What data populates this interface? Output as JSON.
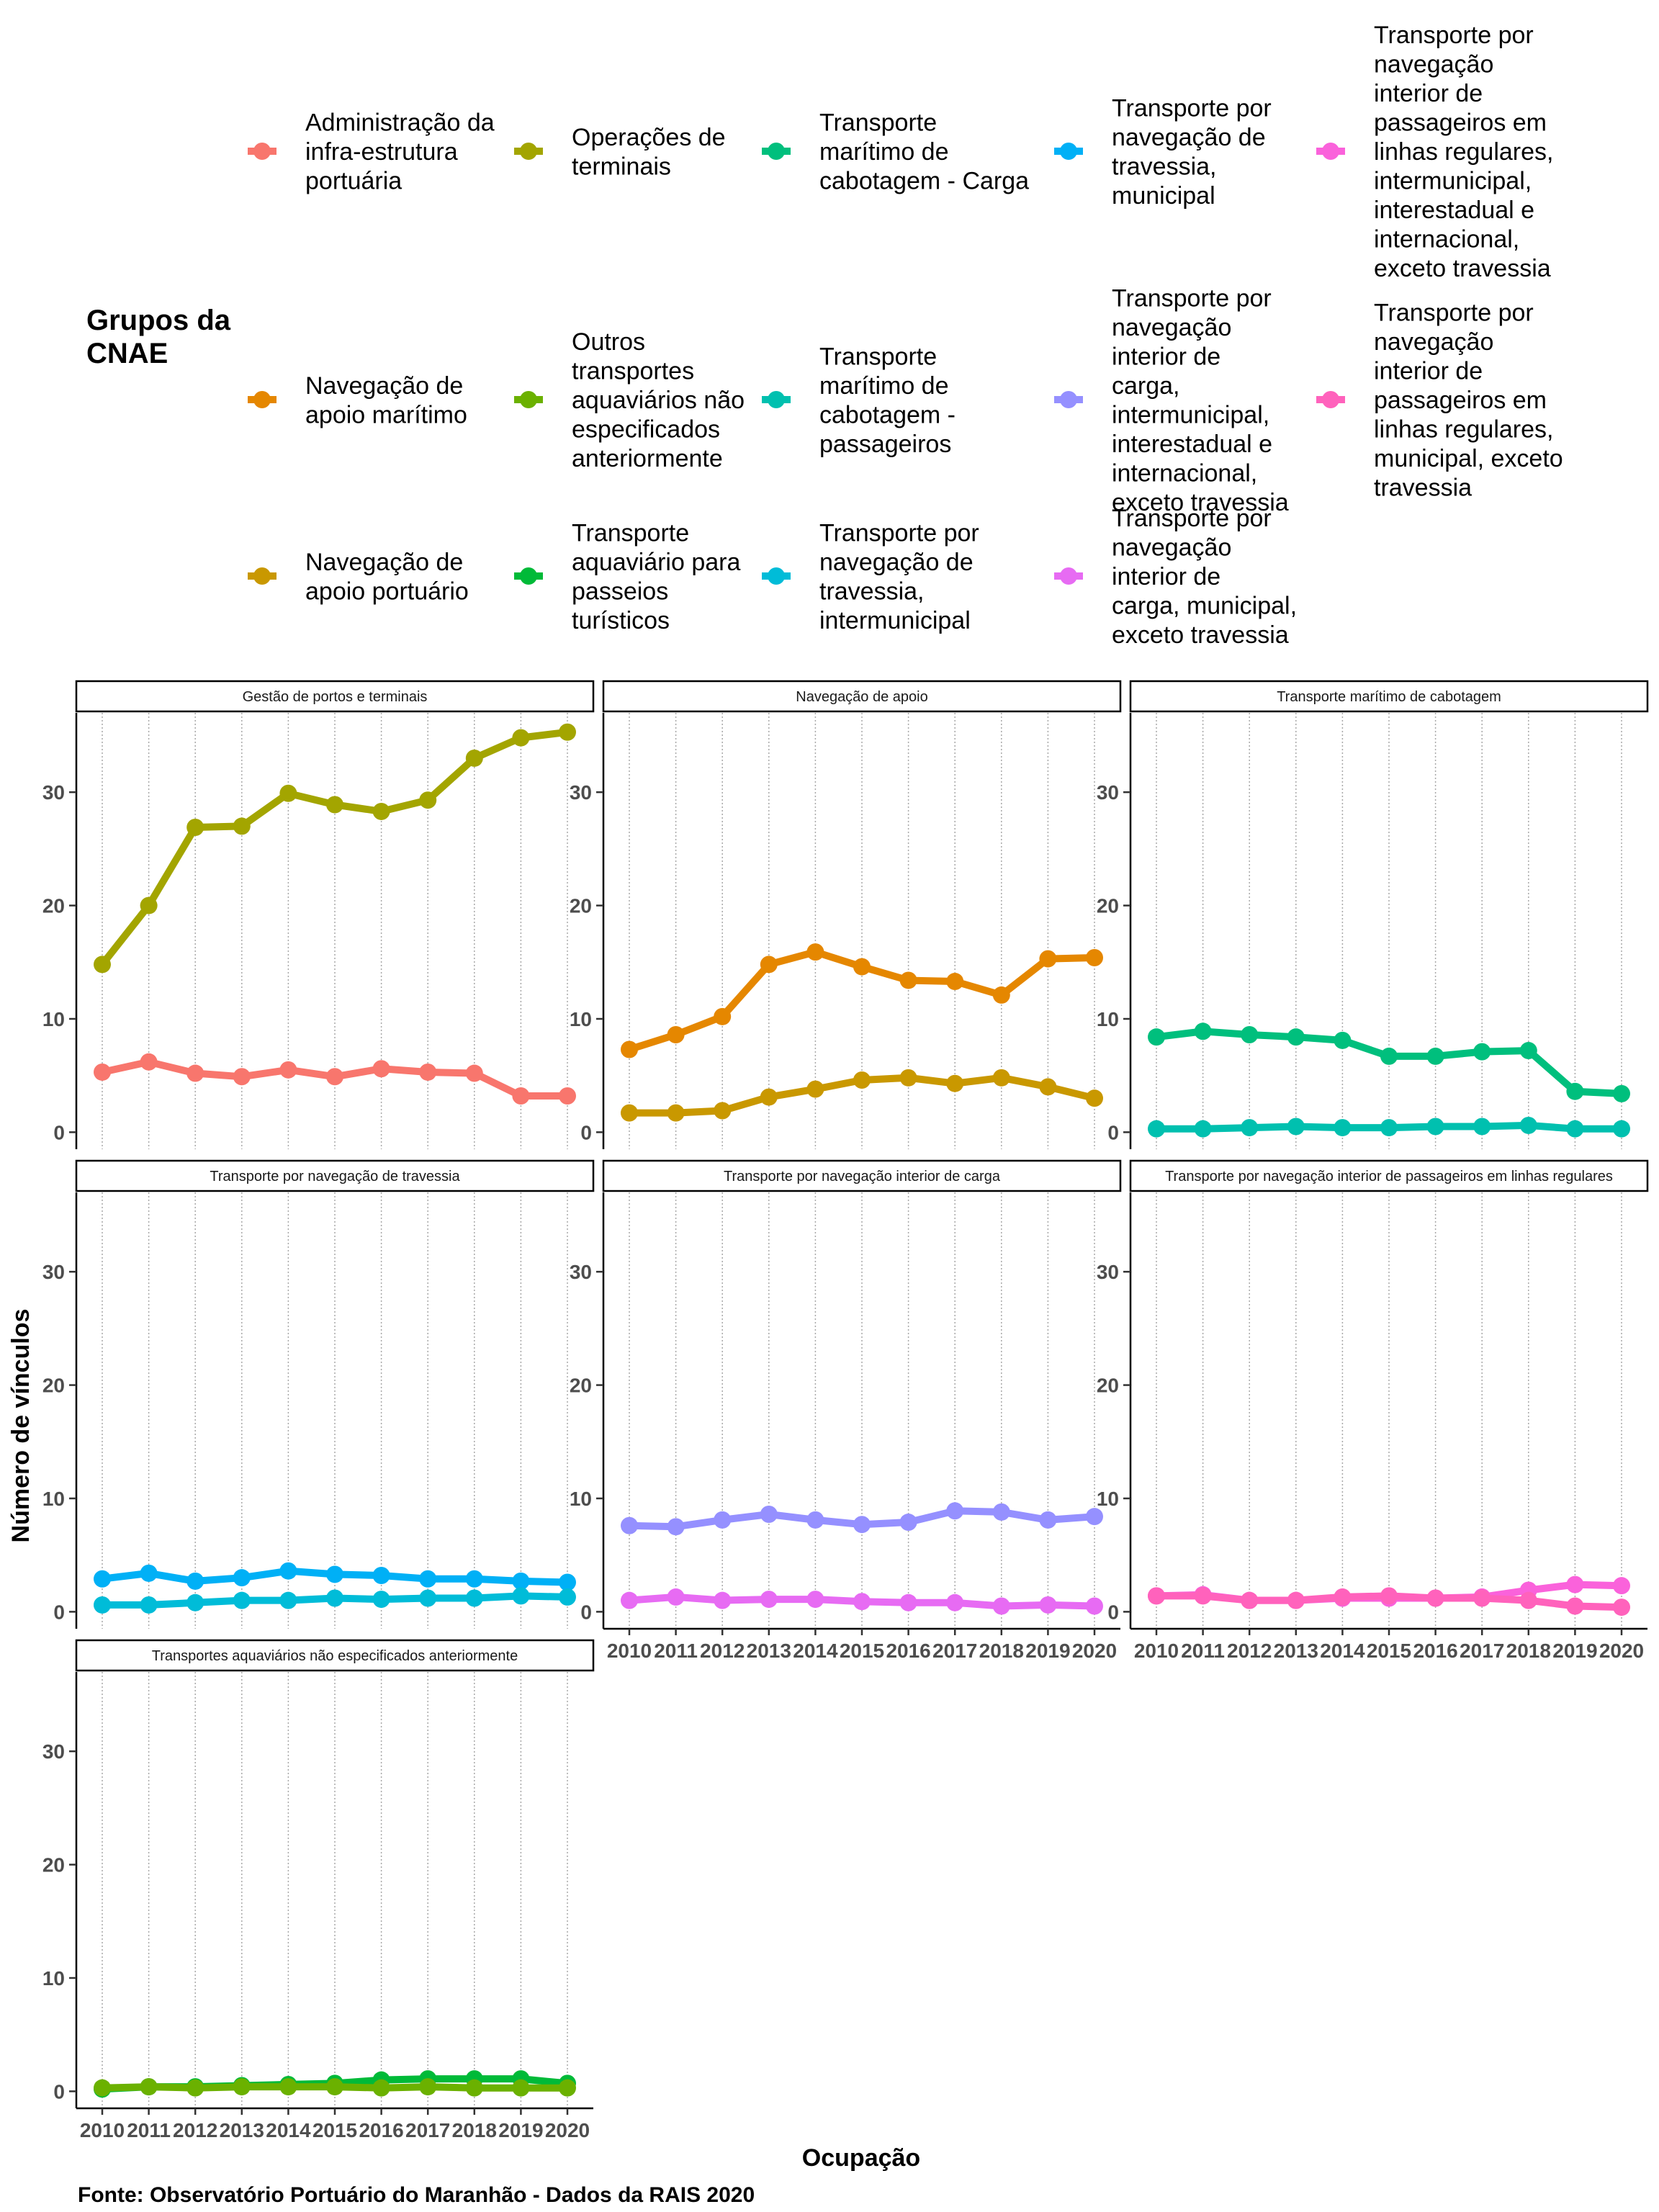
{
  "chart_data": {
    "type": "line",
    "legend": {
      "title": "Grupos da\nCNAE",
      "placement": "top"
    },
    "xlabel": "Ocupação",
    "ylabel": "Número de vínculos",
    "caption": "Fonte: Observatório Portuário do Maranhão - Dados da RAIS 2020",
    "ylim": [
      -1.5,
      37
    ],
    "yticks": [
      0,
      10,
      20,
      30
    ],
    "x": [
      "2010",
      "2011",
      "2012",
      "2013",
      "2014",
      "2015",
      "2016",
      "2017",
      "2018",
      "2019",
      "2020"
    ],
    "groups": [
      {
        "name": "Administração da\ninfra-estrutura\nportuária",
        "color": "#F8766D"
      },
      {
        "name": "Navegação de\napoio marítimo",
        "color": "#E58700"
      },
      {
        "name": "Navegação de\napoio portuário",
        "color": "#C99800"
      },
      {
        "name": "Operações de\nterminais",
        "color": "#A3A500"
      },
      {
        "name": "Outros\ntransportes\naquaviários não\nespecificados\nanteriormente",
        "color": "#6BB100"
      },
      {
        "name": "Transporte\naquaviário para\npasseios\nturísticos",
        "color": "#00BA38"
      },
      {
        "name": "Transporte\nmarítimo de\ncabotagem - Carga",
        "color": "#00BF7D"
      },
      {
        "name": "Transporte\nmarítimo de\ncabotagem -\npassageiros",
        "color": "#00C0AF"
      },
      {
        "name": "Transporte por\nnavegação de\ntravessia,\nintermunicipal",
        "color": "#00BCD8"
      },
      {
        "name": "Transporte por\nnavegação de\ntravessia,\nmunicipal",
        "color": "#00B0F6"
      },
      {
        "name": "Transporte por\nnavegação\ninterior de\ncarga,\nintermunicipal,\ninterestadual e\ninternacional,\nexceto travessia",
        "color": "#9590FF"
      },
      {
        "name": "Transporte por\nnavegação\ninterior de\ncarga, municipal,\nexceto travessia",
        "color": "#E76BF3"
      },
      {
        "name": "Transporte por\nnavegação\ninterior de\npassageiros em\nlinhas regulares,\nintermunicipal,\ninterestadual e\ninternacional,\nexceto travessia",
        "color": "#FA62DB"
      },
      {
        "name": "Transporte por\nnavegação\ninterior de\npassageiros em\nlinhas regulares,\nmunicipal, exceto\ntravessia",
        "color": "#FF62BC"
      }
    ],
    "panels": [
      {
        "title": "Gestão de portos e terminais",
        "series": [
          {
            "group": 3,
            "values": [
              14.8,
              20.0,
              26.9,
              27.0,
              29.9,
              28.9,
              28.3,
              29.3,
              33.0,
              34.8,
              35.3
            ]
          },
          {
            "group": 0,
            "values": [
              5.3,
              6.2,
              5.2,
              4.9,
              5.5,
              4.9,
              5.6,
              5.3,
              5.2,
              3.2,
              3.2
            ]
          }
        ]
      },
      {
        "title": "Navegação de apoio",
        "series": [
          {
            "group": 1,
            "values": [
              7.3,
              8.6,
              10.2,
              14.8,
              15.9,
              14.6,
              13.4,
              13.3,
              12.1,
              15.3,
              15.4
            ]
          },
          {
            "group": 2,
            "values": [
              1.7,
              1.7,
              1.9,
              3.1,
              3.8,
              4.6,
              4.8,
              4.3,
              4.8,
              4.0,
              3.0
            ]
          }
        ]
      },
      {
        "title": "Transporte marítimo de cabotagem",
        "series": [
          {
            "group": 6,
            "values": [
              8.4,
              8.9,
              8.6,
              8.4,
              8.1,
              6.7,
              6.7,
              7.1,
              7.2,
              3.6,
              3.4
            ]
          },
          {
            "group": 7,
            "values": [
              0.3,
              0.3,
              0.4,
              0.5,
              0.4,
              0.4,
              0.5,
              0.5,
              0.6,
              0.3,
              0.3
            ]
          }
        ]
      },
      {
        "title": "Transporte por navegação de travessia",
        "series": [
          {
            "group": 9,
            "values": [
              2.9,
              3.4,
              2.7,
              3.0,
              3.6,
              3.3,
              3.2,
              2.9,
              2.9,
              2.7,
              2.6
            ]
          },
          {
            "group": 8,
            "values": [
              0.6,
              0.6,
              0.8,
              1.0,
              1.0,
              1.2,
              1.1,
              1.2,
              1.2,
              1.4,
              1.3
            ]
          }
        ]
      },
      {
        "title": "Transporte por navegação interior de carga",
        "series": [
          {
            "group": 10,
            "values": [
              7.6,
              7.5,
              8.1,
              8.6,
              8.1,
              7.7,
              7.9,
              8.9,
              8.8,
              8.1,
              8.4
            ]
          },
          {
            "group": 11,
            "values": [
              1.0,
              1.3,
              1.0,
              1.1,
              1.1,
              0.9,
              0.8,
              0.8,
              0.5,
              0.6,
              0.5
            ]
          }
        ]
      },
      {
        "title": "Transporte por navegação interior de passageiros em linhas regulares",
        "series": [
          {
            "group": 12,
            "values": [
              1.4,
              1.5,
              1.0,
              1.0,
              1.2,
              1.2,
              1.2,
              1.3,
              1.9,
              2.4,
              2.3
            ]
          },
          {
            "group": 13,
            "values": [
              1.4,
              1.4,
              1.0,
              1.0,
              1.3,
              1.4,
              1.2,
              1.2,
              1.0,
              0.5,
              0.4
            ]
          }
        ]
      },
      {
        "title": "Transportes aquaviários não especificados anteriormente",
        "series": [
          {
            "group": 5,
            "values": [
              0.2,
              0.4,
              0.4,
              0.5,
              0.6,
              0.7,
              1.0,
              1.1,
              1.1,
              1.1,
              0.7
            ]
          },
          {
            "group": 4,
            "values": [
              0.3,
              0.4,
              0.3,
              0.4,
              0.4,
              0.4,
              0.3,
              0.4,
              0.3,
              0.3,
              0.3
            ]
          }
        ]
      }
    ]
  }
}
